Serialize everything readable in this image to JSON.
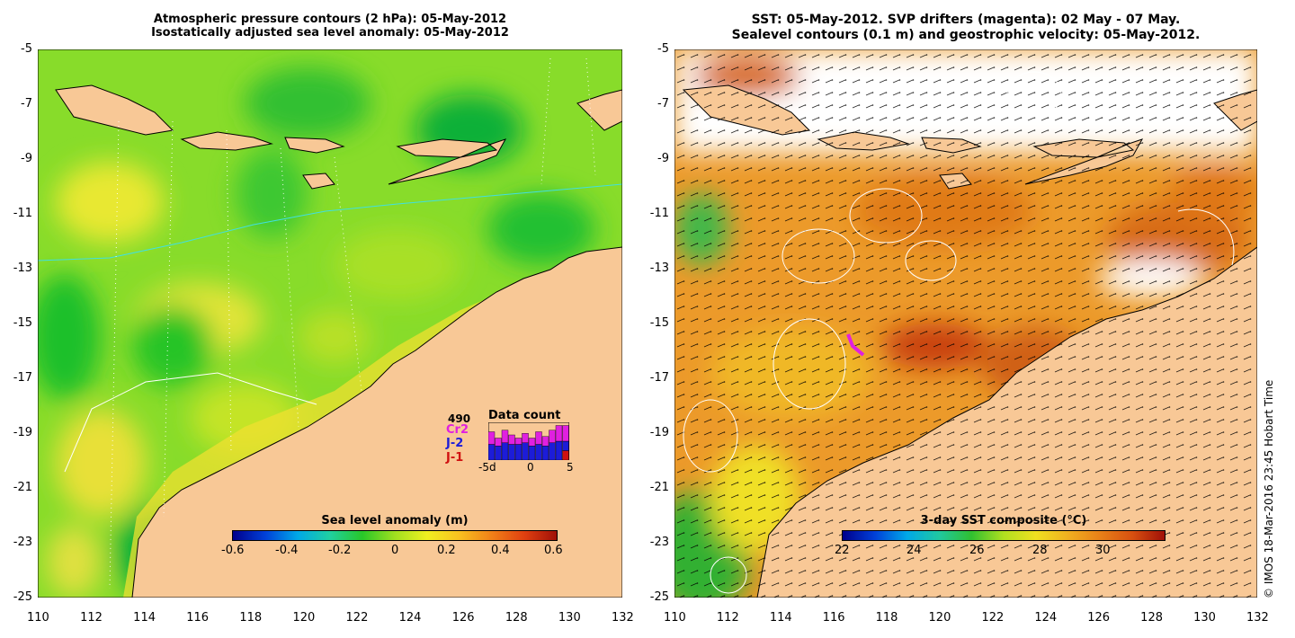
{
  "left_panel": {
    "title_line1": "Atmospheric pressure contours (2 hPa): 05-May-2012",
    "title_line2": "Isostatically adjusted sea level anomaly: 05-May-2012",
    "colorbar": {
      "label": "Sea level anomaly (m)",
      "ticks": [
        "-0.6",
        "-0.4",
        "-0.2",
        "0",
        "0.2",
        "0.4",
        "0.6"
      ]
    },
    "data_count": {
      "title": "Data count",
      "total": "490",
      "missions": [
        {
          "name": "Cr2",
          "color": "#e020e0"
        },
        {
          "name": "J-2",
          "color": "#1c1cd8"
        },
        {
          "name": "J-1",
          "color": "#d01010"
        }
      ],
      "x_ticks": [
        "-5d",
        "0",
        "5"
      ],
      "stacked_bars": [
        {
          "j1": 0,
          "j2": 10,
          "cr2": 8
        },
        {
          "j1": 0,
          "j2": 9,
          "cr2": 5
        },
        {
          "j1": 0,
          "j2": 11,
          "cr2": 8
        },
        {
          "j1": 0,
          "j2": 10,
          "cr2": 6
        },
        {
          "j1": 0,
          "j2": 10,
          "cr2": 4
        },
        {
          "j1": 0,
          "j2": 11,
          "cr2": 6
        },
        {
          "j1": 0,
          "j2": 9,
          "cr2": 5
        },
        {
          "j1": 0,
          "j2": 10,
          "cr2": 8
        },
        {
          "j1": 0,
          "j2": 9,
          "cr2": 6
        },
        {
          "j1": 0,
          "j2": 11,
          "cr2": 8
        },
        {
          "j1": 0,
          "j2": 12,
          "cr2": 10
        },
        {
          "j1": 6,
          "j2": 6,
          "cr2": 10
        }
      ]
    }
  },
  "right_panel": {
    "title_line1": "SST: 05-May-2012. SVP drifters (magenta): 02 May - 07 May.",
    "title_line2": "Sealevel contours (0.1 m) and geostrophic velocity: 05-May-2012.",
    "colorbar": {
      "label": "3-day SST composite (°C)",
      "ticks": [
        "22",
        "24",
        "26",
        "28",
        "30"
      ]
    }
  },
  "axes": {
    "lat_ticks": [
      "-5",
      "-7",
      "-9",
      "-11",
      "-13",
      "-15",
      "-17",
      "-19",
      "-21",
      "-23",
      "-25"
    ],
    "lon_ticks": [
      "110",
      "112",
      "114",
      "116",
      "118",
      "120",
      "122",
      "124",
      "126",
      "128",
      "130",
      "132"
    ],
    "lon_range": [
      110,
      132
    ],
    "lat_range": [
      -25,
      -5
    ]
  },
  "credit": "© IMOS 18-Mar-2016 23:45 Hobart Time",
  "colors": {
    "land": "#f8c896",
    "sla_scale": [
      "#00008c",
      "#0040d8",
      "#00a8e8",
      "#20d0a0",
      "#28c828",
      "#a0e020",
      "#f0f020",
      "#f8c020",
      "#f08018",
      "#e04010",
      "#a01008"
    ],
    "sst_scale": [
      "#00008c",
      "#0040d8",
      "#00a8e8",
      "#20c8a0",
      "#30c030",
      "#b0e020",
      "#f0e020",
      "#f0b020",
      "#e88018",
      "#d85010",
      "#a01008"
    ]
  }
}
